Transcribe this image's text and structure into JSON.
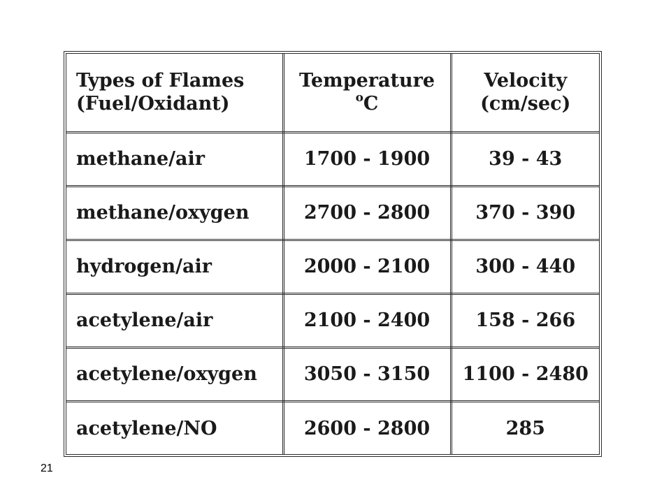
{
  "table": {
    "headers": {
      "fuel": [
        "Types of Flames",
        "(Fuel/Oxidant)"
      ],
      "temperature": {
        "title": "Temperature",
        "degree_symbol": "o",
        "unit": "C"
      },
      "velocity": [
        "Velocity",
        "(cm/sec)"
      ]
    },
    "rows": [
      {
        "fuel": "methane/air",
        "temperature": "1700 - 1900",
        "velocity": "39 - 43"
      },
      {
        "fuel": "methane/oxygen",
        "temperature": "2700 - 2800",
        "velocity": "370 - 390"
      },
      {
        "fuel": "hydrogen/air",
        "temperature": "2000 - 2100",
        "velocity": "300 - 440"
      },
      {
        "fuel": "acetylene/air",
        "temperature": "2100 - 2400",
        "velocity": "158 - 266"
      },
      {
        "fuel": "acetylene/oxygen",
        "temperature": "3050 - 3150",
        "velocity": "1100 - 2480"
      },
      {
        "fuel": "acetylene/NO",
        "temperature": "2600 - 2800",
        "velocity": "285"
      }
    ]
  },
  "page_number": "21"
}
